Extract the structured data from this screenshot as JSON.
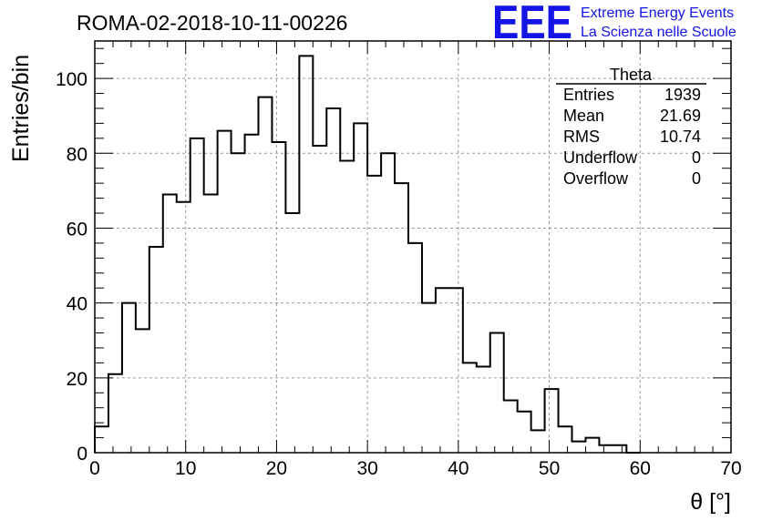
{
  "title": "ROMA-02-2018-10-11-00226",
  "logo": {
    "mark": "EEE",
    "line1": "Extreme Energy Events",
    "line2": "La Scienza nelle Scuole",
    "color": "#1414e6"
  },
  "stats_box": {
    "name": "Theta",
    "rows": [
      {
        "label": "Entries",
        "value": "1939"
      },
      {
        "label": "Mean",
        "value": "21.69"
      },
      {
        "label": "RMS",
        "value": "10.74"
      },
      {
        "label": "Underflow",
        "value": "0"
      },
      {
        "label": "Overflow",
        "value": "0"
      }
    ]
  },
  "chart_data": {
    "type": "bar",
    "style": "step-histogram",
    "title": "ROMA-02-2018-10-11-00226",
    "xlabel": "θ [°]",
    "ylabel": "Entries/bin",
    "xlim": [
      0,
      70
    ],
    "ylim": [
      0,
      110
    ],
    "grid": true,
    "bin_width": 1.5,
    "bin_low_edge": 0,
    "bin_values": [
      7,
      21,
      40,
      33,
      55,
      69,
      67,
      84,
      69,
      86,
      80,
      85,
      95,
      83,
      64,
      106,
      82,
      92,
      78,
      88,
      74,
      80,
      72,
      56,
      40,
      44,
      44,
      24,
      23,
      32,
      14,
      11,
      6,
      17,
      7,
      3,
      4,
      2,
      2,
      0
    ],
    "x_ticks": [
      0,
      10,
      20,
      30,
      40,
      50,
      60,
      70
    ],
    "y_ticks": [
      0,
      20,
      40,
      60,
      80,
      100
    ],
    "line_color": "#000000"
  }
}
